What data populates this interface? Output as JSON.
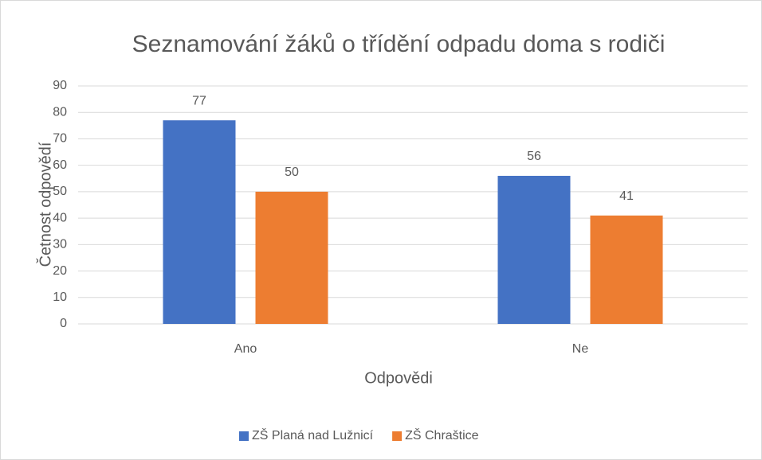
{
  "chart_data": {
    "type": "bar",
    "title": "Seznamování žáků o třídění odpadu doma s rodiči",
    "x_label": "Odpovědi",
    "y_label": "Četnost odpovědí",
    "categories": [
      "Ano",
      "Ne"
    ],
    "series": [
      {
        "name": "ZŠ Planá nad Lužnicí",
        "color": "#4472c4",
        "values": [
          77,
          56
        ]
      },
      {
        "name": "ZŠ Chraštice",
        "color": "#ed7d31",
        "values": [
          50,
          41
        ]
      }
    ],
    "ylim": [
      0,
      90
    ],
    "yticks": [
      0,
      10,
      20,
      30,
      40,
      50,
      60,
      70,
      80,
      90
    ],
    "grid": true,
    "legend": "bottom",
    "data_labels": true
  }
}
